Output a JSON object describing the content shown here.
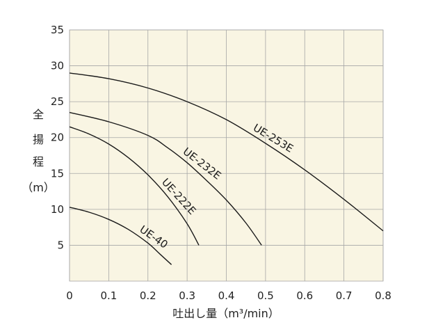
{
  "chart_data": {
    "type": "line",
    "title": "",
    "xlabel": "吐出し量（m³/min）",
    "ylabel": [
      "全",
      "揚",
      "程",
      "（m）"
    ],
    "xlim": [
      0,
      0.8
    ],
    "ylim": [
      0,
      35
    ],
    "xticks": [
      "0",
      "0.1",
      "0.2",
      "0.3",
      "0.4",
      "0.5",
      "0.6",
      "0.7",
      "0.8"
    ],
    "yticks": [
      "5",
      "10",
      "15",
      "20",
      "25",
      "30",
      "35"
    ],
    "grid": true,
    "series": [
      {
        "name": "UE-253E",
        "x": [
          0,
          0.1,
          0.2,
          0.3,
          0.4,
          0.5,
          0.6,
          0.7,
          0.8
        ],
        "y": [
          29,
          28.2,
          26.9,
          25,
          22.5,
          19.2,
          15.5,
          11.4,
          7
        ]
      },
      {
        "name": "UE-232E",
        "x": [
          0,
          0.1,
          0.2,
          0.25,
          0.3,
          0.35,
          0.4,
          0.45,
          0.49
        ],
        "y": [
          23.5,
          22.2,
          20.3,
          18.6,
          16.5,
          14,
          11.3,
          8.1,
          5
        ]
      },
      {
        "name": "UE-222E",
        "x": [
          0,
          0.05,
          0.1,
          0.15,
          0.2,
          0.25,
          0.3,
          0.33
        ],
        "y": [
          21.5,
          20.5,
          19.1,
          17.2,
          14.8,
          11.8,
          8,
          5
        ]
      },
      {
        "name": "UE-40",
        "x": [
          0,
          0.05,
          0.1,
          0.15,
          0.2,
          0.23,
          0.26
        ],
        "y": [
          10.3,
          9.6,
          8.6,
          7.2,
          5.3,
          3.8,
          2.3
        ]
      }
    ]
  }
}
